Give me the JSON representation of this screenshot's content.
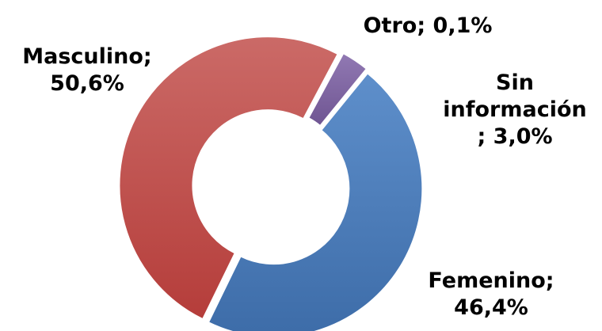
{
  "chart_data": {
    "type": "donut",
    "categories": [
      "Masculino",
      "Otro",
      "Sin información",
      "Femenino"
    ],
    "values": [
      50.6,
      0.1,
      3.0,
      46.4
    ],
    "value_labels": [
      "50,6%",
      "0,1%",
      "3,0%",
      "46,4%"
    ],
    "label_separator": ";",
    "colors": [
      "#c0504d",
      "#9bbb59",
      "#8064a2",
      "#4f81bd"
    ]
  }
}
